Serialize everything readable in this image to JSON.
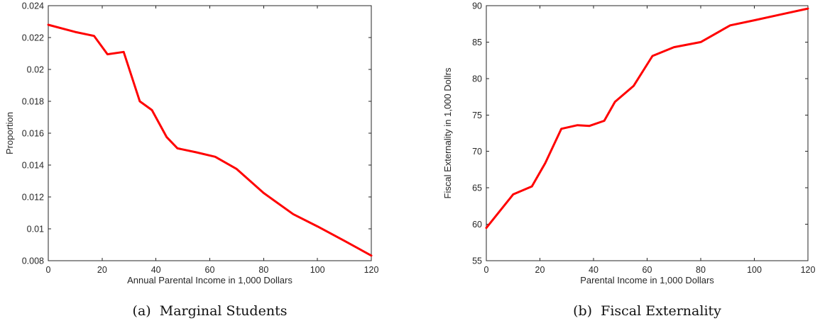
{
  "chart_data": [
    {
      "type": "line",
      "caption": "(a)  Marginal Students",
      "xlabel": "Annual Parental Income in 1,000 Dollars",
      "ylabel": "Proportion",
      "xlim": [
        0,
        120
      ],
      "ylim": [
        0.008,
        0.024
      ],
      "xticks": [
        0,
        20,
        40,
        60,
        80,
        100,
        120
      ],
      "yticks": [
        0.008,
        0.01,
        0.012,
        0.014,
        0.016,
        0.018,
        0.02,
        0.022,
        0.024
      ],
      "ytick_labels": [
        "0.008",
        "0.01",
        "0.012",
        "0.014",
        "0.016",
        "0.018",
        "0.02",
        "0.022",
        "0.024"
      ],
      "grid": false,
      "color": "#ff0000",
      "series": [
        {
          "x": [
            0,
            10,
            17,
            22,
            28,
            34,
            38.5,
            44,
            48,
            55,
            62,
            70,
            80,
            91,
            100,
            110,
            120
          ],
          "y": [
            0.0228,
            0.02235,
            0.0221,
            0.02095,
            0.0211,
            0.018,
            0.01745,
            0.01575,
            0.01505,
            0.0148,
            0.01452,
            0.01375,
            0.01225,
            0.01092,
            0.01015,
            0.00925,
            0.00832
          ]
        }
      ]
    },
    {
      "type": "line",
      "caption": "(b)  Fiscal Externality",
      "xlabel": "Parental Income in 1,000 Dollars",
      "ylabel": "Fiscal Externality in 1,000 Dollrs",
      "xlim": [
        0,
        120
      ],
      "ylim": [
        55,
        90
      ],
      "xticks": [
        0,
        20,
        40,
        60,
        80,
        100,
        120
      ],
      "yticks": [
        55,
        60,
        65,
        70,
        75,
        80,
        85,
        90
      ],
      "ytick_labels": [
        "55",
        "60",
        "65",
        "70",
        "75",
        "80",
        "85",
        "90"
      ],
      "grid": false,
      "color": "#ff0000",
      "series": [
        {
          "x": [
            0,
            10,
            17,
            22,
            28,
            34,
            38.5,
            44,
            48,
            55,
            62,
            70,
            80,
            91,
            100,
            110,
            120
          ],
          "y": [
            59.5,
            64.1,
            65.2,
            68.4,
            73.1,
            73.6,
            73.5,
            74.2,
            76.8,
            79,
            83.1,
            84.3,
            85,
            87.3,
            88,
            88.8,
            89.6
          ]
        }
      ]
    }
  ]
}
